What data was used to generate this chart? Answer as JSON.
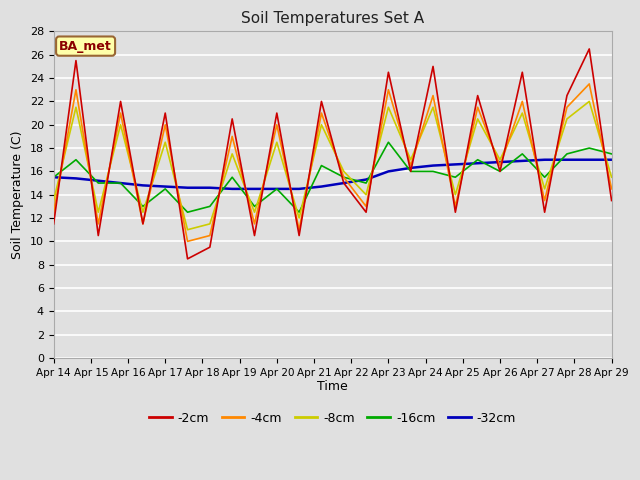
{
  "title": "Soil Temperatures Set A",
  "xlabel": "Time",
  "ylabel": "Soil Temperature (C)",
  "annotation": "BA_met",
  "ylim": [
    0,
    28
  ],
  "yticks": [
    0,
    2,
    4,
    6,
    8,
    10,
    12,
    14,
    16,
    18,
    20,
    22,
    24,
    26,
    28
  ],
  "xtick_labels": [
    "Apr 14",
    "Apr 15",
    "Apr 16",
    "Apr 17",
    "Apr 18",
    "Apr 19",
    "Apr 20",
    "Apr 21",
    "Apr 22",
    "Apr 23",
    "Apr 24",
    "Apr 25",
    "Apr 26",
    "Apr 27",
    "Apr 28",
    "Apr 29"
  ],
  "series_labels": [
    "-2cm",
    "-4cm",
    "-8cm",
    "-16cm",
    "-32cm"
  ],
  "series_colors": [
    "#cc0000",
    "#ff8800",
    "#cccc00",
    "#00aa00",
    "#0000bb"
  ],
  "series_linewidths": [
    1.2,
    1.2,
    1.2,
    1.2,
    1.8
  ],
  "background_color": "#e0e0e0",
  "plot_bg_color": "#e0e0e0",
  "grid_color": "#ffffff",
  "t_2cm": [
    11.5,
    25.5,
    10.5,
    22.0,
    11.5,
    21.0,
    8.5,
    9.5,
    20.5,
    10.5,
    21.0,
    10.5,
    22.0,
    15.0,
    12.5,
    24.5,
    16.0,
    25.0,
    12.5,
    22.5,
    16.0,
    24.5,
    12.5,
    22.5,
    26.5,
    13.5
  ],
  "t_4cm": [
    12.5,
    23.0,
    11.5,
    21.0,
    11.5,
    20.0,
    10.0,
    10.5,
    19.0,
    11.5,
    20.0,
    11.0,
    21.0,
    15.5,
    13.0,
    23.0,
    16.5,
    22.5,
    13.0,
    21.5,
    16.5,
    22.0,
    13.5,
    21.5,
    23.5,
    14.5
  ],
  "t_8cm": [
    13.5,
    21.5,
    12.5,
    20.0,
    12.5,
    18.5,
    11.0,
    11.5,
    17.5,
    12.5,
    18.5,
    12.0,
    20.0,
    16.0,
    14.0,
    21.5,
    17.0,
    21.5,
    14.0,
    20.5,
    17.0,
    21.0,
    14.5,
    20.5,
    22.0,
    15.5
  ],
  "t_16cm": [
    15.5,
    17.0,
    15.0,
    15.0,
    13.0,
    14.5,
    12.5,
    13.0,
    15.5,
    13.0,
    14.5,
    12.5,
    16.5,
    15.5,
    15.0,
    18.5,
    16.0,
    16.0,
    15.5,
    17.0,
    16.0,
    17.5,
    15.5,
    17.5,
    18.0,
    17.5
  ],
  "t_32cm": [
    15.5,
    15.4,
    15.2,
    15.0,
    14.8,
    14.7,
    14.6,
    14.6,
    14.5,
    14.5,
    14.5,
    14.5,
    14.7,
    15.0,
    15.3,
    16.0,
    16.3,
    16.5,
    16.6,
    16.7,
    16.8,
    16.9,
    17.0,
    17.0,
    17.0,
    17.0
  ]
}
